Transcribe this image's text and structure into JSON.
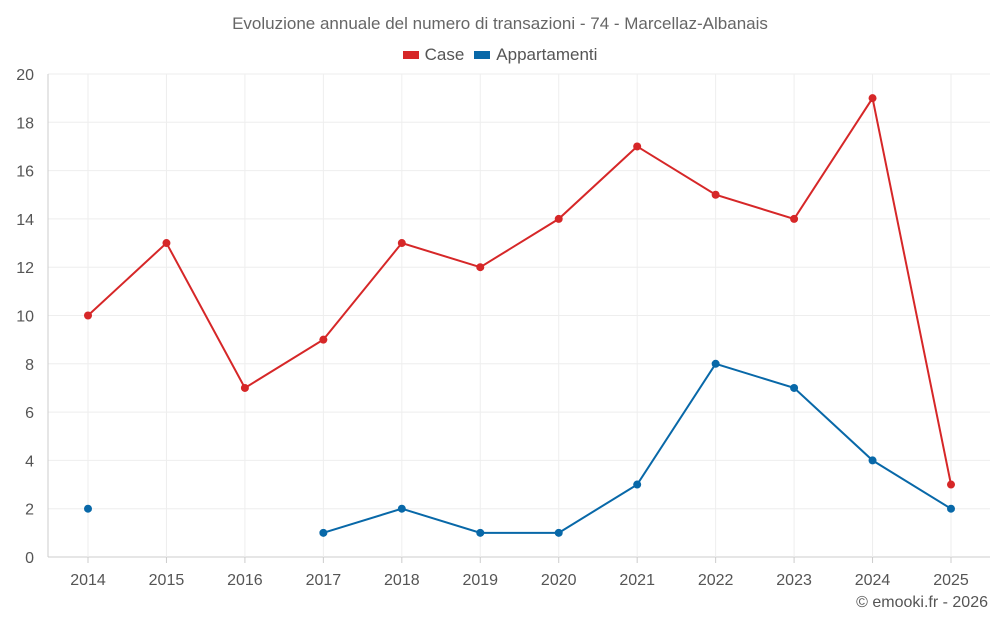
{
  "chart_data": {
    "type": "line",
    "title": "Evoluzione annuale del numero di transazioni - 74 - Marcellaz-Albanais",
    "xlabel": "",
    "ylabel": "",
    "categories": [
      "2014",
      "2015",
      "2016",
      "2017",
      "2018",
      "2019",
      "2020",
      "2021",
      "2022",
      "2023",
      "2024",
      "2025"
    ],
    "ylim": [
      0,
      20
    ],
    "yticks": [
      0,
      2,
      4,
      6,
      8,
      10,
      12,
      14,
      16,
      18,
      20
    ],
    "grid": true,
    "legend_position": "top-center",
    "series": [
      {
        "name": "Case",
        "color": "#d62728",
        "values": [
          10,
          13,
          7,
          9,
          13,
          12,
          14,
          17,
          15,
          14,
          19,
          3
        ]
      },
      {
        "name": "Appartamenti",
        "color": "#0868a8",
        "values": [
          2,
          null,
          null,
          1,
          2,
          1,
          1,
          3,
          8,
          7,
          4,
          2
        ]
      }
    ]
  },
  "credit": "© emooki.fr - 2026"
}
